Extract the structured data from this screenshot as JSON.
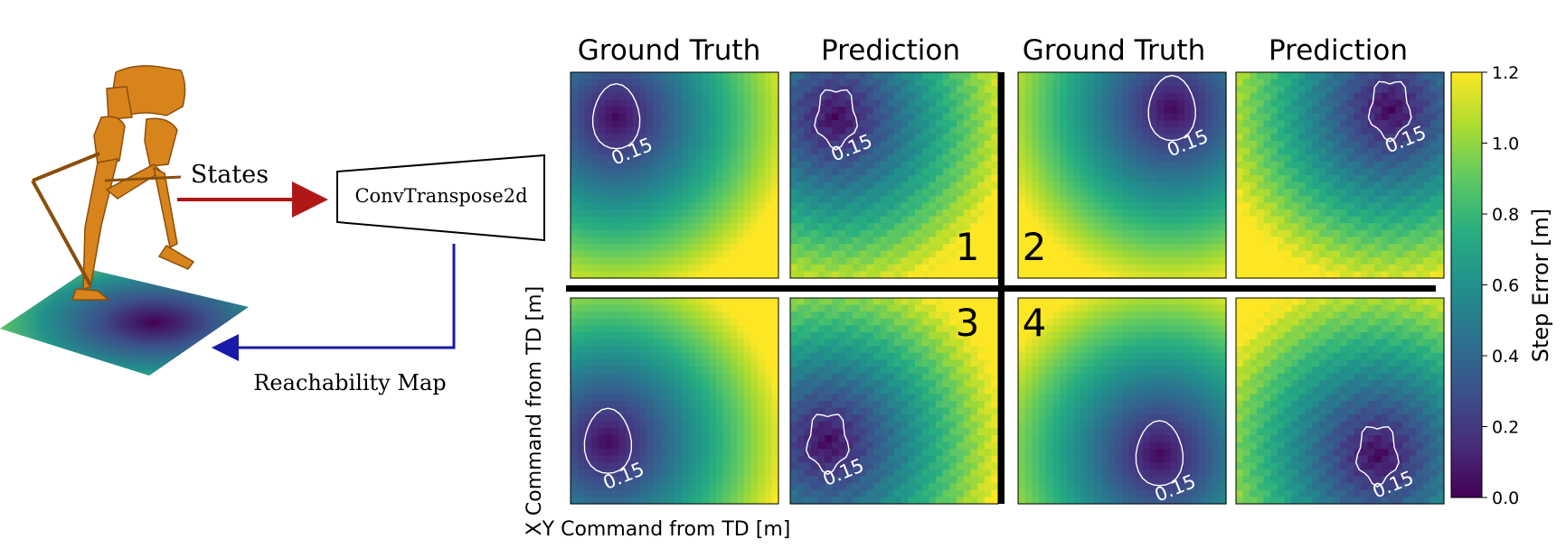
{
  "pipeline": {
    "states_label": "States",
    "network_label": "ConvTranspose2d",
    "map_label": "Reachability Map"
  },
  "columns": [
    "Ground Truth",
    "Prediction",
    "Ground Truth",
    "Prediction"
  ],
  "axes": {
    "xlabel": "Y Command from TD [m]",
    "ylabel": "X Command from TD [m]"
  },
  "colorbar": {
    "label": "Step Error [m]",
    "ticks": [
      "0.0",
      "0.2",
      "0.4",
      "0.6",
      "0.8",
      "1.0",
      "1.2"
    ],
    "min": 0.0,
    "max": 1.2,
    "colormap": "viridis"
  },
  "panels": [
    {
      "case": "1",
      "contour_label": "0.15",
      "min_x": 0.22,
      "min_y": 0.22
    },
    {
      "case": "2",
      "contour_label": "0.15",
      "min_x": 0.74,
      "min_y": 0.18
    },
    {
      "case": "3",
      "contour_label": "0.15",
      "min_x": 0.18,
      "min_y": 0.7
    },
    {
      "case": "4",
      "contour_label": "0.15",
      "min_x": 0.68,
      "min_y": 0.76
    }
  ],
  "colors": {
    "states_arrow": "#b01818",
    "map_arrow": "#1a1aa8",
    "robot": "#d8841c"
  }
}
